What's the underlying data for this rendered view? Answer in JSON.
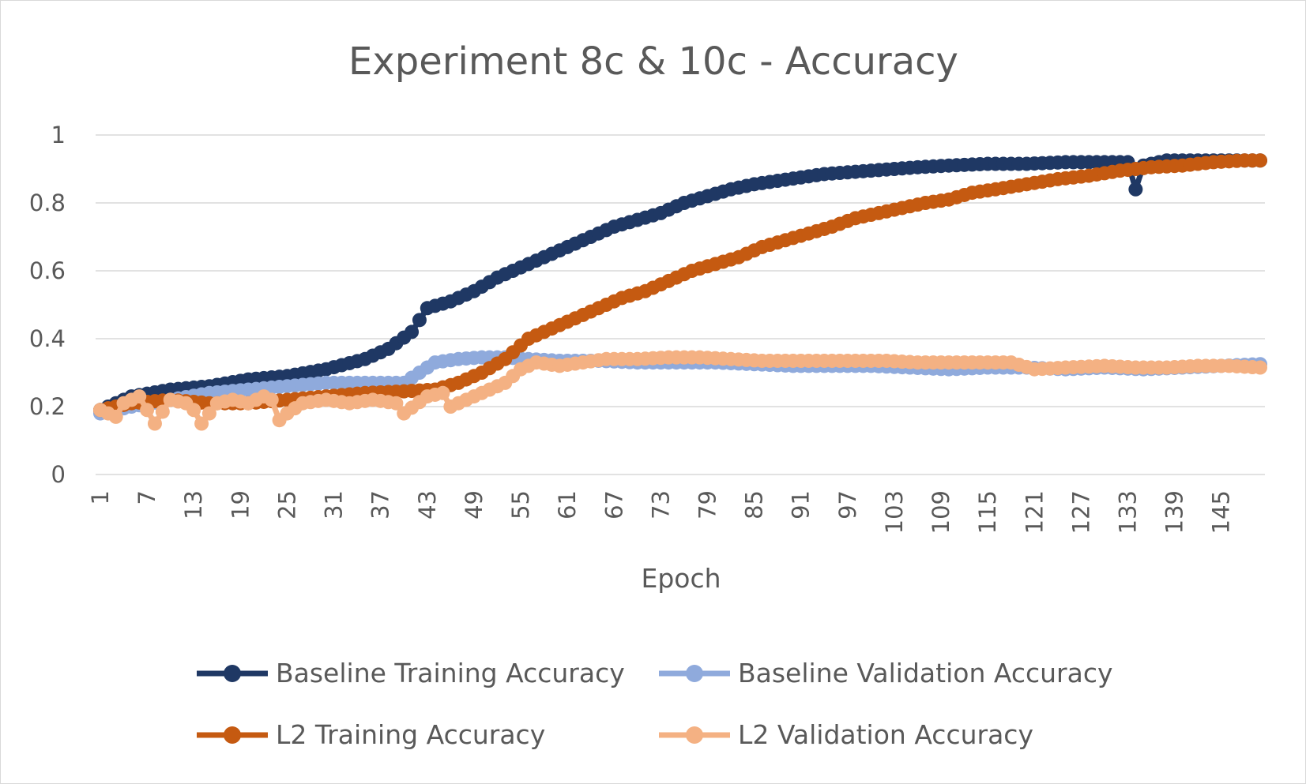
{
  "chart_data": {
    "type": "line",
    "title": "Experiment 8c & 10c - Accuracy",
    "xlabel": "Epoch",
    "ylabel": "",
    "xlim": [
      1,
      150
    ],
    "ylim": [
      0,
      1
    ],
    "yticks": [
      "0",
      "0.2",
      "0.4",
      "0.6",
      "0.8",
      "1"
    ],
    "xticks": [
      "1",
      "7",
      "13",
      "19",
      "25",
      "31",
      "37",
      "43",
      "49",
      "55",
      "61",
      "67",
      "73",
      "79",
      "85",
      "91",
      "97",
      "103",
      "109",
      "115",
      "121",
      "127",
      "133",
      "139",
      "145"
    ],
    "grid": "horizontal",
    "legend_position": "bottom",
    "markers": "circle",
    "series": [
      {
        "name": "Baseline Training Accuracy",
        "color": "#1f3864",
        "points": [
          [
            1,
            0.19
          ],
          [
            5,
            0.23
          ],
          [
            10,
            0.25
          ],
          [
            15,
            0.26
          ],
          [
            20,
            0.28
          ],
          [
            25,
            0.29
          ],
          [
            30,
            0.31
          ],
          [
            35,
            0.34
          ],
          [
            38,
            0.37
          ],
          [
            41,
            0.42
          ],
          [
            43,
            0.49
          ],
          [
            46,
            0.51
          ],
          [
            49,
            0.54
          ],
          [
            52,
            0.58
          ],
          [
            55,
            0.61
          ],
          [
            58,
            0.64
          ],
          [
            61,
            0.67
          ],
          [
            64,
            0.7
          ],
          [
            67,
            0.73
          ],
          [
            70,
            0.75
          ],
          [
            73,
            0.77
          ],
          [
            76,
            0.8
          ],
          [
            79,
            0.82
          ],
          [
            82,
            0.84
          ],
          [
            85,
            0.855
          ],
          [
            88,
            0.865
          ],
          [
            91,
            0.875
          ],
          [
            94,
            0.885
          ],
          [
            97,
            0.89
          ],
          [
            100,
            0.895
          ],
          [
            103,
            0.9
          ],
          [
            106,
            0.905
          ],
          [
            110,
            0.91
          ],
          [
            115,
            0.915
          ],
          [
            120,
            0.915
          ],
          [
            125,
            0.92
          ],
          [
            130,
            0.92
          ],
          [
            133,
            0.92
          ],
          [
            134,
            0.84
          ],
          [
            135,
            0.91
          ],
          [
            138,
            0.925
          ],
          [
            142,
            0.925
          ],
          [
            146,
            0.925
          ],
          [
            150,
            0.925
          ]
        ]
      },
      {
        "name": "Baseline Validation Accuracy",
        "color": "#8faadc",
        "points": [
          [
            1,
            0.18
          ],
          [
            5,
            0.2
          ],
          [
            10,
            0.22
          ],
          [
            15,
            0.24
          ],
          [
            20,
            0.25
          ],
          [
            25,
            0.26
          ],
          [
            30,
            0.27
          ],
          [
            35,
            0.27
          ],
          [
            40,
            0.27
          ],
          [
            42,
            0.3
          ],
          [
            44,
            0.33
          ],
          [
            47,
            0.34
          ],
          [
            50,
            0.345
          ],
          [
            53,
            0.345
          ],
          [
            56,
            0.34
          ],
          [
            60,
            0.335
          ],
          [
            65,
            0.335
          ],
          [
            70,
            0.33
          ],
          [
            75,
            0.33
          ],
          [
            80,
            0.33
          ],
          [
            85,
            0.325
          ],
          [
            90,
            0.32
          ],
          [
            95,
            0.32
          ],
          [
            100,
            0.32
          ],
          [
            105,
            0.315
          ],
          [
            110,
            0.31
          ],
          [
            115,
            0.315
          ],
          [
            120,
            0.315
          ],
          [
            125,
            0.31
          ],
          [
            130,
            0.315
          ],
          [
            135,
            0.31
          ],
          [
            140,
            0.315
          ],
          [
            145,
            0.32
          ],
          [
            150,
            0.325
          ]
        ]
      },
      {
        "name": "L2 Training Accuracy",
        "color": "#c55a11",
        "points": [
          [
            1,
            0.19
          ],
          [
            5,
            0.21
          ],
          [
            10,
            0.22
          ],
          [
            15,
            0.21
          ],
          [
            20,
            0.21
          ],
          [
            25,
            0.22
          ],
          [
            30,
            0.23
          ],
          [
            35,
            0.24
          ],
          [
            40,
            0.245
          ],
          [
            44,
            0.25
          ],
          [
            47,
            0.27
          ],
          [
            50,
            0.3
          ],
          [
            53,
            0.34
          ],
          [
            56,
            0.4
          ],
          [
            59,
            0.43
          ],
          [
            62,
            0.46
          ],
          [
            65,
            0.49
          ],
          [
            68,
            0.52
          ],
          [
            71,
            0.54
          ],
          [
            74,
            0.57
          ],
          [
            77,
            0.6
          ],
          [
            80,
            0.62
          ],
          [
            83,
            0.64
          ],
          [
            86,
            0.67
          ],
          [
            89,
            0.69
          ],
          [
            92,
            0.71
          ],
          [
            95,
            0.73
          ],
          [
            98,
            0.755
          ],
          [
            101,
            0.77
          ],
          [
            104,
            0.785
          ],
          [
            107,
            0.8
          ],
          [
            110,
            0.81
          ],
          [
            113,
            0.83
          ],
          [
            116,
            0.84
          ],
          [
            120,
            0.855
          ],
          [
            124,
            0.87
          ],
          [
            128,
            0.88
          ],
          [
            132,
            0.895
          ],
          [
            136,
            0.905
          ],
          [
            140,
            0.91
          ],
          [
            144,
            0.92
          ],
          [
            148,
            0.925
          ],
          [
            150,
            0.925
          ]
        ]
      },
      {
        "name": "L2 Validation Accuracy",
        "color": "#f4b183",
        "points": [
          [
            1,
            0.19
          ],
          [
            3,
            0.17
          ],
          [
            4,
            0.21
          ],
          [
            6,
            0.23
          ],
          [
            8,
            0.15
          ],
          [
            10,
            0.22
          ],
          [
            12,
            0.21
          ],
          [
            13,
            0.19
          ],
          [
            14,
            0.15
          ],
          [
            16,
            0.21
          ],
          [
            18,
            0.22
          ],
          [
            20,
            0.21
          ],
          [
            22,
            0.23
          ],
          [
            23,
            0.22
          ],
          [
            24,
            0.16
          ],
          [
            25,
            0.18
          ],
          [
            27,
            0.21
          ],
          [
            30,
            0.22
          ],
          [
            33,
            0.21
          ],
          [
            36,
            0.22
          ],
          [
            39,
            0.21
          ],
          [
            40,
            0.18
          ],
          [
            43,
            0.23
          ],
          [
            45,
            0.24
          ],
          [
            46,
            0.2
          ],
          [
            48,
            0.22
          ],
          [
            50,
            0.24
          ],
          [
            53,
            0.27
          ],
          [
            55,
            0.31
          ],
          [
            57,
            0.33
          ],
          [
            60,
            0.32
          ],
          [
            63,
            0.33
          ],
          [
            66,
            0.34
          ],
          [
            70,
            0.34
          ],
          [
            74,
            0.345
          ],
          [
            78,
            0.345
          ],
          [
            82,
            0.34
          ],
          [
            86,
            0.335
          ],
          [
            90,
            0.335
          ],
          [
            94,
            0.335
          ],
          [
            98,
            0.335
          ],
          [
            102,
            0.335
          ],
          [
            106,
            0.33
          ],
          [
            110,
            0.33
          ],
          [
            114,
            0.33
          ],
          [
            118,
            0.33
          ],
          [
            121,
            0.31
          ],
          [
            125,
            0.315
          ],
          [
            130,
            0.32
          ],
          [
            134,
            0.315
          ],
          [
            138,
            0.315
          ],
          [
            142,
            0.32
          ],
          [
            146,
            0.32
          ],
          [
            150,
            0.315
          ]
        ]
      }
    ]
  }
}
